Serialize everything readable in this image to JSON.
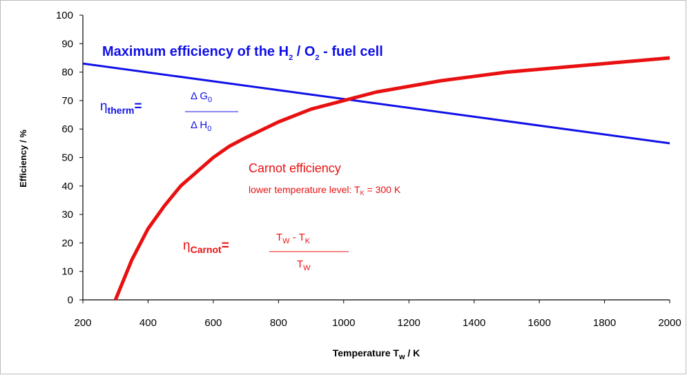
{
  "chart_data": {
    "type": "line",
    "title": [
      "Maximum efficiency of the H",
      "2",
      " / O",
      "2",
      " - fuel cell"
    ],
    "y_label": "Efficiency / %",
    "x_label": [
      "Temperature T",
      "w",
      " / K"
    ],
    "xlim": [
      200,
      2000
    ],
    "xticks": [
      200,
      400,
      600,
      800,
      1000,
      1200,
      1400,
      1600,
      1800,
      2000
    ],
    "ylim": [
      0,
      100
    ],
    "yticks": [
      0,
      10,
      20,
      30,
      40,
      50,
      60,
      70,
      80,
      90,
      100
    ],
    "series": [
      {
        "color": "#1010e8",
        "x": [
          200,
          2000
        ],
        "values": [
          83,
          55
        ]
      },
      {
        "color": "#e81010",
        "x": [
          300,
          350,
          400,
          450,
          500,
          550,
          600,
          650,
          700,
          800,
          900,
          1000,
          1100,
          1200,
          1300,
          1400,
          1500,
          1600,
          1700,
          1800,
          1900,
          2000
        ],
        "values": [
          0,
          14,
          25,
          33,
          40,
          45,
          50,
          54,
          57,
          62.5,
          67,
          70,
          73,
          75,
          77,
          78.5,
          80,
          81,
          82,
          83,
          84,
          85
        ]
      }
    ],
    "annotations": {
      "therm": {
        "eta": "η",
        "sub": "therm",
        "eq": "=",
        "num": [
          "Δ G",
          "0"
        ],
        "den": [
          "Δ H",
          "0"
        ]
      },
      "carnot_title": "Carnot efficiency",
      "carnot_note": [
        "lower temperature level: T",
        "K",
        " = 300 K"
      ],
      "carnot": {
        "eta": "η",
        "sub": "Carnot",
        "eq": "=",
        "num": [
          "T",
          "W",
          " - T",
          "K"
        ],
        "den": [
          "T",
          "W"
        ]
      }
    }
  }
}
